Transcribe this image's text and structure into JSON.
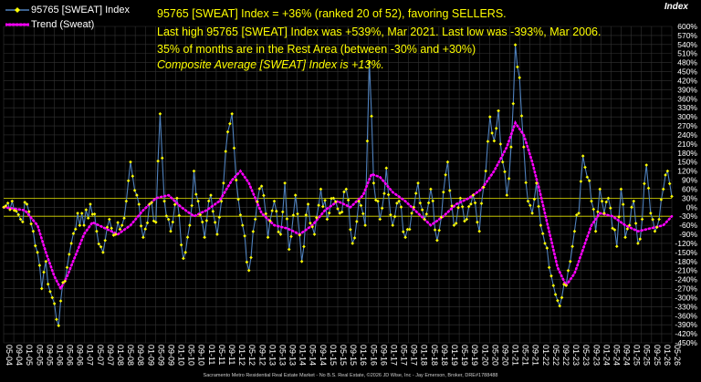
{
  "title_lines": [
    "95765 [SWEAT] Index = +36% (ranked 20 of 52), favoring SELLERS.",
    "Last high 95765 [SWEAT] Index was +539%, Mar 2021. Last low was -393%, Mar 2006.",
    "35% of months are in the Rest Area (between -30% and +30%)",
    "Composite Average [SWEAT] Index is +13%."
  ],
  "axis_title": "Index",
  "footer": "Sacramento Metro Residential Real Estate Market - No B.S. Real Estate, ©2026 JD Wise, Inc - Jay Emerson, Broker, DRE#1788488",
  "colors": {
    "index_line": "#4f81bd",
    "index_marker": "#ffff00",
    "trend": "#ff00ff",
    "grid": "#333333",
    "ref_line": "#e0e000",
    "text": "#ffffff"
  },
  "chart_data": {
    "type": "line",
    "series": [
      {
        "name": "95765 [SWEAT] Index",
        "style": "line with yellow markers"
      },
      {
        "name": "Trend (Sweat)",
        "style": "dotted magenta"
      }
    ],
    "ylim": [
      -450,
      600
    ],
    "y_ticks": [
      600,
      570,
      540,
      510,
      480,
      450,
      420,
      390,
      360,
      330,
      300,
      270,
      240,
      210,
      180,
      150,
      120,
      90,
      60,
      30,
      0,
      -30,
      -60,
      -90,
      -120,
      -150,
      -180,
      -210,
      -240,
      -270,
      -300,
      -330,
      -360,
      -390,
      -420,
      -450
    ],
    "reference_lines": [
      30,
      -30
    ],
    "x_tick_labels": [
      "05-04",
      "09-04",
      "01-05",
      "05-05",
      "09-05",
      "01-06",
      "05-06",
      "09-06",
      "01-07",
      "05-07",
      "09-07",
      "01-08",
      "05-08",
      "09-08",
      "01-09",
      "05-09",
      "09-09",
      "01-10",
      "05-10",
      "09-10",
      "01-11",
      "05-11",
      "09-11",
      "01-12",
      "05-12",
      "09-12",
      "01-13",
      "05-13",
      "09-13",
      "01-14",
      "05-14",
      "09-14",
      "01-15",
      "05-15",
      "09-15",
      "01-16",
      "05-16",
      "09-16",
      "01-17",
      "05-17",
      "09-17",
      "01-18",
      "05-18",
      "09-18",
      "01-19",
      "05-19",
      "09-19",
      "01-20",
      "05-20",
      "09-20",
      "01-21",
      "05-21",
      "09-21",
      "01-22",
      "05-22",
      "09-22",
      "01-23",
      "05-23",
      "09-23",
      "01-24",
      "05-24",
      "09-24",
      "01-25",
      "05-25",
      "09-25",
      "01-26",
      "05-26"
    ],
    "index_anchors": [
      [
        0,
        0
      ],
      [
        4,
        20
      ],
      [
        8,
        -40
      ],
      [
        11,
        10
      ],
      [
        14,
        -80
      ],
      [
        16,
        -150
      ],
      [
        18,
        -270
      ],
      [
        20,
        -180
      ],
      [
        22,
        -280
      ],
      [
        24,
        -320
      ],
      [
        26,
        -393
      ],
      [
        28,
        -250
      ],
      [
        30,
        -200
      ],
      [
        32,
        -120
      ],
      [
        35,
        -20
      ],
      [
        38,
        -60
      ],
      [
        41,
        10
      ],
      [
        44,
        -80
      ],
      [
        47,
        -150
      ],
      [
        50,
        -40
      ],
      [
        53,
        -90
      ],
      [
        56,
        -60
      ],
      [
        58,
        20
      ],
      [
        60,
        150
      ],
      [
        63,
        40
      ],
      [
        66,
        -100
      ],
      [
        69,
        10
      ],
      [
        72,
        -50
      ],
      [
        74,
        310
      ],
      [
        76,
        20
      ],
      [
        79,
        -80
      ],
      [
        82,
        30
      ],
      [
        85,
        -170
      ],
      [
        88,
        -60
      ],
      [
        90,
        120
      ],
      [
        92,
        20
      ],
      [
        95,
        -100
      ],
      [
        98,
        40
      ],
      [
        101,
        -90
      ],
      [
        104,
        80
      ],
      [
        106,
        250
      ],
      [
        108,
        310
      ],
      [
        110,
        90
      ],
      [
        113,
        -60
      ],
      [
        116,
        -210
      ],
      [
        119,
        -40
      ],
      [
        122,
        70
      ],
      [
        125,
        -100
      ],
      [
        128,
        20
      ],
      [
        131,
        -90
      ],
      [
        133,
        80
      ],
      [
        135,
        -140
      ],
      [
        138,
        40
      ],
      [
        141,
        -180
      ],
      [
        144,
        10
      ],
      [
        147,
        -90
      ],
      [
        150,
        60
      ],
      [
        153,
        -40
      ],
      [
        156,
        30
      ],
      [
        159,
        -20
      ],
      [
        162,
        60
      ],
      [
        165,
        -120
      ],
      [
        168,
        20
      ],
      [
        171,
        -60
      ],
      [
        173,
        480
      ],
      [
        175,
        80
      ],
      [
        178,
        -40
      ],
      [
        181,
        130
      ],
      [
        184,
        -60
      ],
      [
        187,
        20
      ],
      [
        190,
        -100
      ],
      [
        193,
        -20
      ],
      [
        196,
        80
      ],
      [
        199,
        -40
      ],
      [
        202,
        60
      ],
      [
        205,
        -110
      ],
      [
        208,
        50
      ],
      [
        210,
        150
      ],
      [
        213,
        -60
      ],
      [
        216,
        30
      ],
      [
        219,
        -40
      ],
      [
        222,
        40
      ],
      [
        225,
        -80
      ],
      [
        228,
        120
      ],
      [
        230,
        300
      ],
      [
        232,
        220
      ],
      [
        234,
        320
      ],
      [
        236,
        150
      ],
      [
        238,
        40
      ],
      [
        240,
        200
      ],
      [
        242,
        539
      ],
      [
        244,
        430
      ],
      [
        246,
        200
      ],
      [
        248,
        20
      ],
      [
        250,
        -20
      ],
      [
        252,
        80
      ],
      [
        254,
        -60
      ],
      [
        256,
        -120
      ],
      [
        258,
        -200
      ],
      [
        260,
        -260
      ],
      [
        262,
        -310
      ],
      [
        264,
        -300
      ],
      [
        266,
        -260
      ],
      [
        268,
        -180
      ],
      [
        270,
        -80
      ],
      [
        272,
        -20
      ],
      [
        274,
        170
      ],
      [
        276,
        100
      ],
      [
        278,
        20
      ],
      [
        280,
        -80
      ],
      [
        282,
        60
      ],
      [
        284,
        -20
      ],
      [
        286,
        30
      ],
      [
        288,
        -70
      ],
      [
        290,
        -130
      ],
      [
        292,
        60
      ],
      [
        294,
        -100
      ],
      [
        296,
        -60
      ],
      [
        298,
        20
      ],
      [
        300,
        -120
      ],
      [
        302,
        -40
      ],
      [
        304,
        140
      ],
      [
        306,
        -20
      ],
      [
        308,
        -80
      ],
      [
        310,
        -40
      ],
      [
        312,
        60
      ],
      [
        314,
        120
      ],
      [
        316,
        36
      ]
    ],
    "trend_anchors": [
      [
        0,
        0
      ],
      [
        10,
        -10
      ],
      [
        16,
        -60
      ],
      [
        20,
        -150
      ],
      [
        24,
        -230
      ],
      [
        27,
        -270
      ],
      [
        30,
        -230
      ],
      [
        34,
        -160
      ],
      [
        38,
        -90
      ],
      [
        42,
        -50
      ],
      [
        48,
        -70
      ],
      [
        54,
        -90
      ],
      [
        60,
        -60
      ],
      [
        66,
        -10
      ],
      [
        72,
        30
      ],
      [
        78,
        40
      ],
      [
        84,
        0
      ],
      [
        90,
        -30
      ],
      [
        96,
        -10
      ],
      [
        102,
        20
      ],
      [
        108,
        90
      ],
      [
        112,
        120
      ],
      [
        116,
        80
      ],
      [
        122,
        -20
      ],
      [
        128,
        -60
      ],
      [
        134,
        -70
      ],
      [
        140,
        -90
      ],
      [
        146,
        -60
      ],
      [
        152,
        -10
      ],
      [
        158,
        20
      ],
      [
        164,
        0
      ],
      [
        170,
        40
      ],
      [
        174,
        110
      ],
      [
        178,
        100
      ],
      [
        184,
        50
      ],
      [
        190,
        20
      ],
      [
        196,
        -20
      ],
      [
        202,
        -60
      ],
      [
        208,
        -30
      ],
      [
        214,
        10
      ],
      [
        220,
        30
      ],
      [
        226,
        60
      ],
      [
        232,
        120
      ],
      [
        238,
        200
      ],
      [
        242,
        280
      ],
      [
        246,
        240
      ],
      [
        250,
        150
      ],
      [
        254,
        40
      ],
      [
        258,
        -80
      ],
      [
        262,
        -200
      ],
      [
        266,
        -260
      ],
      [
        270,
        -220
      ],
      [
        274,
        -140
      ],
      [
        278,
        -60
      ],
      [
        282,
        -20
      ],
      [
        288,
        -30
      ],
      [
        294,
        -60
      ],
      [
        300,
        -80
      ],
      [
        306,
        -70
      ],
      [
        312,
        -60
      ],
      [
        316,
        -30
      ]
    ]
  }
}
